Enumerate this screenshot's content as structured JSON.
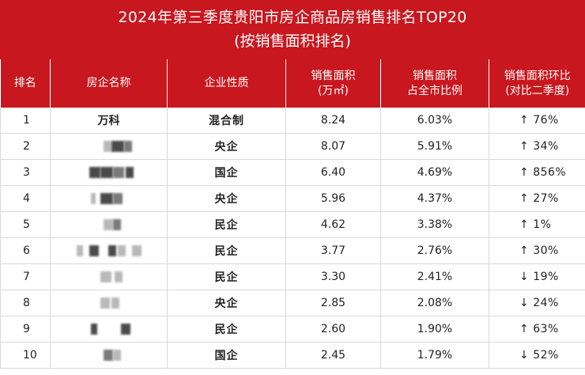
{
  "title": {
    "line1": "2024年第三季度贵阳市房企商品房销售排名TOP20",
    "line2": "(按销售面积排名)"
  },
  "headers": {
    "rank": "排名",
    "company": "房企名称",
    "nature": "企业性质",
    "area_line1": "销售面积",
    "area_line2": "(万㎡)",
    "share_line1": "销售面积",
    "share_line2": "占全市比例",
    "qoq_line1": "销售面积环比",
    "qoq_line2": "(对比二季度)"
  },
  "colors": {
    "header_red": "#c8171e",
    "up": "#c8171e",
    "down": "#3c6e36"
  },
  "rows": [
    {
      "rank": "1",
      "company": "万科",
      "nature": "混合制",
      "area": "8.24",
      "share": "6.03%",
      "arrow": "↑",
      "qoq": "76%",
      "dir": "up"
    },
    {
      "rank": "2",
      "company": "",
      "nature": "央企",
      "area": "8.07",
      "share": "5.91%",
      "arrow": "↑",
      "qoq": "34%",
      "dir": "up"
    },
    {
      "rank": "3",
      "company": "",
      "nature": "国企",
      "area": "6.40",
      "share": "4.69%",
      "arrow": "↑",
      "qoq": "856%",
      "dir": "up"
    },
    {
      "rank": "4",
      "company": "",
      "nature": "央企",
      "area": "5.96",
      "share": "4.37%",
      "arrow": "↑",
      "qoq": "27%",
      "dir": "up"
    },
    {
      "rank": "5",
      "company": "",
      "nature": "民企",
      "area": "4.62",
      "share": "3.38%",
      "arrow": "↑",
      "qoq": "1%",
      "dir": "up"
    },
    {
      "rank": "6",
      "company": "",
      "nature": "民企",
      "area": "3.77",
      "share": "2.76%",
      "arrow": "↑",
      "qoq": "30%",
      "dir": "up"
    },
    {
      "rank": "7",
      "company": "",
      "nature": "民企",
      "area": "3.30",
      "share": "2.41%",
      "arrow": "↓",
      "qoq": "19%",
      "dir": "down"
    },
    {
      "rank": "8",
      "company": "",
      "nature": "央企",
      "area": "2.85",
      "share": "2.08%",
      "arrow": "↓",
      "qoq": "24%",
      "dir": "down"
    },
    {
      "rank": "9",
      "company": "",
      "nature": "民企",
      "area": "2.60",
      "share": "1.90%",
      "arrow": "↑",
      "qoq": "63%",
      "dir": "up"
    },
    {
      "rank": "10",
      "company": "",
      "nature": "国企",
      "area": "2.45",
      "share": "1.79%",
      "arrow": "↓",
      "qoq": "52%",
      "dir": "down"
    }
  ]
}
